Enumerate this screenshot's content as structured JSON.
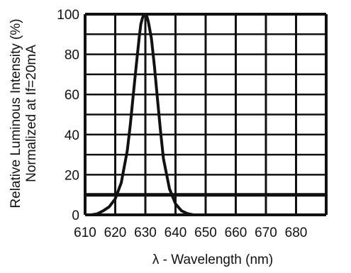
{
  "chart_data": {
    "type": "line",
    "title": "",
    "xlabel": "λ - Wavelength (nm)",
    "ylabel": "Relative Luminous Intensity (%)",
    "ylabel2": "Normalized at If=20mA",
    "xlim": [
      610,
      690
    ],
    "ylim": [
      0,
      100
    ],
    "x_ticks": [
      "610",
      "620",
      "630",
      "640",
      "650",
      "660",
      "670",
      "680"
    ],
    "y_ticks": [
      "0",
      "20",
      "40",
      "60",
      "80",
      "100"
    ],
    "grid": true,
    "series": [
      {
        "x": [
          612,
          614,
          616,
          618,
          620,
          622,
          624,
          625,
          626,
          627,
          628,
          628.5,
          629,
          629.5,
          630,
          630.5,
          631,
          632,
          633,
          634,
          635,
          636,
          638,
          640,
          642,
          644,
          646
        ],
        "values": [
          0,
          0.5,
          2,
          4,
          8,
          16,
          32,
          45,
          60,
          75,
          89,
          95,
          98,
          100,
          100,
          99,
          96,
          88,
          74,
          58,
          42,
          28,
          13,
          5.5,
          2,
          0.6,
          0
        ]
      }
    ],
    "colors": {
      "line": "#111111",
      "grid": "#111111"
    }
  }
}
